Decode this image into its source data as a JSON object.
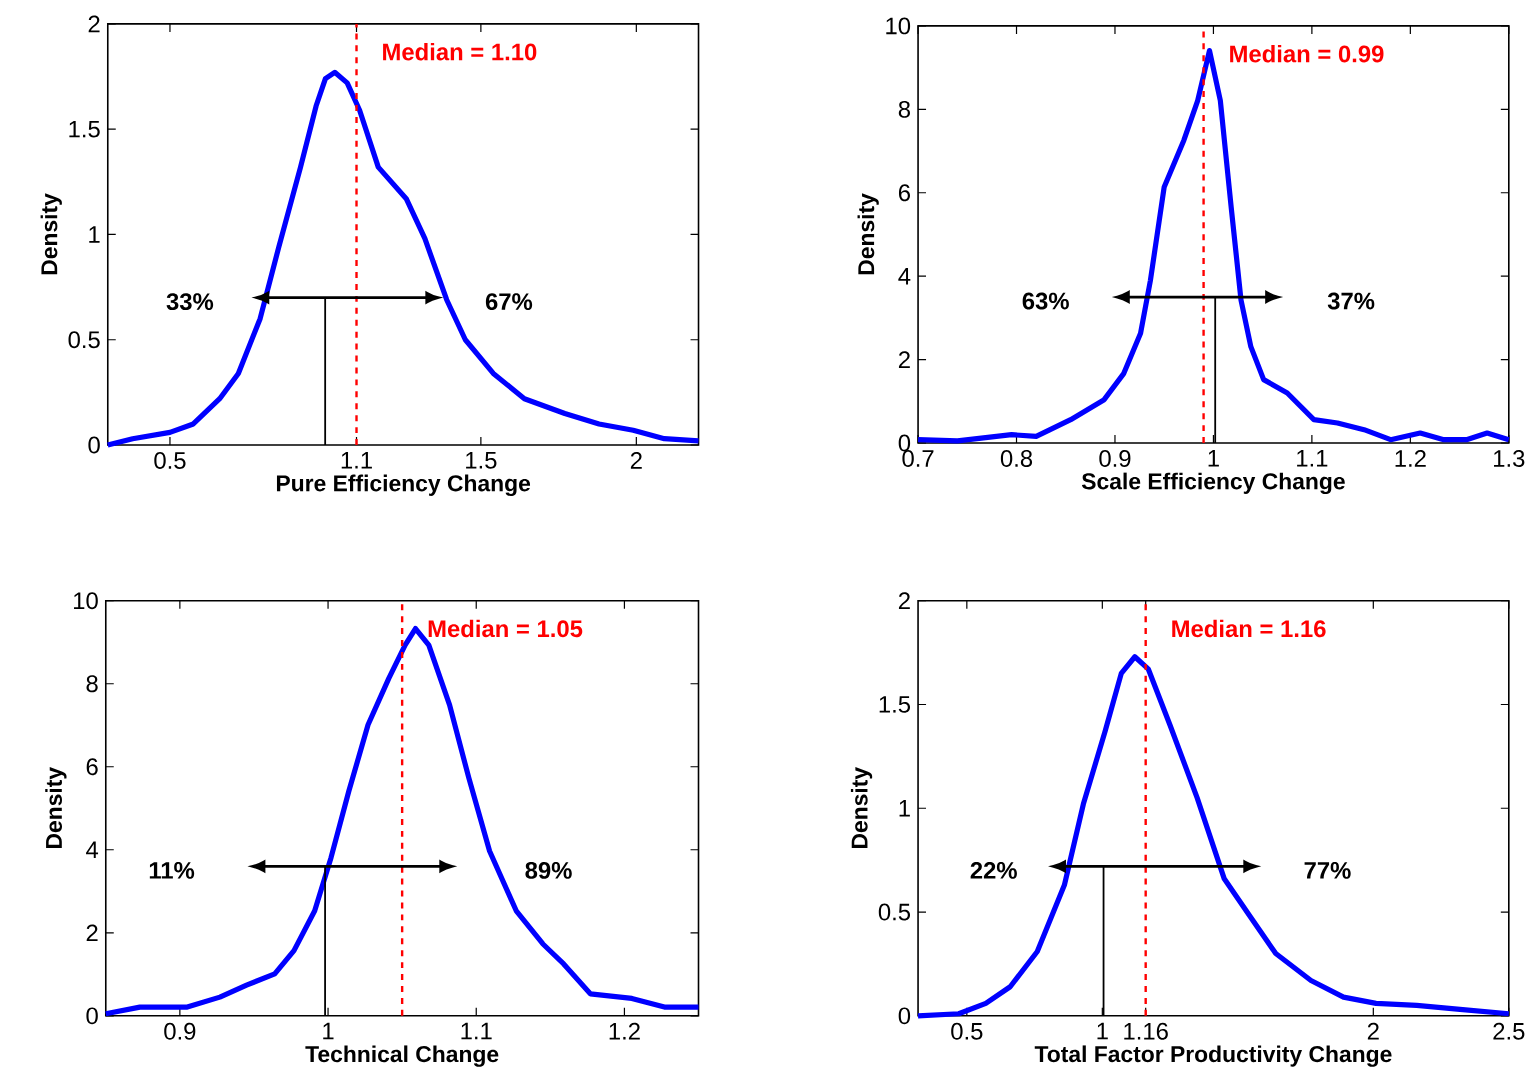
{
  "chart_data": [
    {
      "type": "line",
      "xlabel": "Pure Efficiency Change",
      "ylabel": "Density",
      "xlim": [
        0.3,
        2.2
      ],
      "ylim": [
        0,
        2
      ],
      "xticks": [
        0.5,
        1.1,
        1.5,
        2
      ],
      "yticks": [
        0,
        0.5,
        1,
        1.5,
        2
      ],
      "series": [
        {
          "color": "#0000ff",
          "x": [
            0.3,
            0.38,
            0.5,
            0.575,
            0.66,
            0.72,
            0.79,
            0.85,
            0.92,
            0.97,
            1.0,
            1.03,
            1.07,
            1.11,
            1.17,
            1.26,
            1.32,
            1.39,
            1.45,
            1.54,
            1.64,
            1.77,
            1.88,
            1.99,
            2.09,
            2.2
          ],
          "values": [
            0,
            0.03,
            0.06,
            0.1,
            0.22,
            0.34,
            0.6,
            0.94,
            1.32,
            1.61,
            1.74,
            1.77,
            1.72,
            1.59,
            1.32,
            1.17,
            0.98,
            0.69,
            0.5,
            0.34,
            0.22,
            0.15,
            0.1,
            0.07,
            0.03,
            0.02
          ]
        }
      ],
      "ref_lines": [
        {
          "axis": "x",
          "value": 1.1,
          "label": "Median = 1.10",
          "color": "#ff0000",
          "line_style": "dashed"
        }
      ],
      "annotations": [
        "33%",
        "67%"
      ]
    },
    {
      "type": "line",
      "xlabel": "Scale Efficiency Change",
      "ylabel": "Density",
      "xlim": [
        0.7,
        1.3
      ],
      "ylim": [
        0,
        10
      ],
      "xticks": [
        0.7,
        0.8,
        0.9,
        1,
        1.1,
        1.2,
        1.3
      ],
      "yticks": [
        0,
        2,
        4,
        6,
        8,
        10
      ],
      "series": [
        {
          "color": "#0000ff",
          "x": [
            0.7,
            0.74,
            0.795,
            0.82,
            0.855,
            0.889,
            0.909,
            0.926,
            0.936,
            0.95,
            0.97,
            0.984,
            0.996,
            1.007,
            1.018,
            1.028,
            1.038,
            1.051,
            1.075,
            1.102,
            1.126,
            1.153,
            1.18,
            1.21,
            1.234,
            1.257,
            1.278,
            1.3
          ],
          "values": [
            0.08,
            0.05,
            0.2,
            0.16,
            0.56,
            1.04,
            1.67,
            2.63,
            3.9,
            6.14,
            7.26,
            8.21,
            9.41,
            8.21,
            5.66,
            3.43,
            2.31,
            1.52,
            1.2,
            0.56,
            0.48,
            0.32,
            0.08,
            0.24,
            0.08,
            0.08,
            0.24,
            0.08
          ]
        }
      ],
      "ref_lines": [
        {
          "axis": "x",
          "value": 0.99,
          "label": "Median = 0.99",
          "color": "#ff0000",
          "line_style": "dashed"
        }
      ],
      "annotations": [
        "63%",
        "37%"
      ]
    },
    {
      "type": "line",
      "xlabel": "Technical Change",
      "ylabel": "Density",
      "xlim": [
        0.85,
        1.25
      ],
      "ylim": [
        0,
        10
      ],
      "xticks": [
        0.9,
        1,
        1.1,
        1.2
      ],
      "yticks": [
        0,
        2,
        4,
        6,
        8,
        10
      ],
      "series": [
        {
          "color": "#0000ff",
          "x": [
            0.85,
            0.873,
            0.905,
            0.927,
            0.945,
            0.964,
            0.977,
            0.991,
            1.002,
            1.014,
            1.027,
            1.041,
            1.052,
            1.059,
            1.068,
            1.082,
            1.095,
            1.109,
            1.127,
            1.145,
            1.159,
            1.177,
            1.205,
            1.227,
            1.25
          ],
          "values": [
            0.05,
            0.21,
            0.21,
            0.45,
            0.74,
            1.01,
            1.57,
            2.53,
            3.81,
            5.41,
            7.01,
            8.13,
            8.93,
            9.33,
            8.93,
            7.49,
            5.73,
            3.97,
            2.53,
            1.73,
            1.25,
            0.53,
            0.42,
            0.21,
            0.21
          ]
        }
      ],
      "ref_lines": [
        {
          "axis": "x",
          "value": 1.05,
          "label": "Median = 1.05",
          "color": "#ff0000",
          "line_style": "dashed"
        }
      ],
      "annotations": [
        "11%",
        "89%"
      ]
    },
    {
      "type": "line",
      "xlabel": "Total Factor Productivity Change",
      "ylabel": "Density",
      "xlim": [
        0.32,
        2.5
      ],
      "ylim": [
        0,
        2
      ],
      "xticks": [
        0.5,
        1,
        1.16,
        2,
        2.5
      ],
      "yticks": [
        0,
        0.5,
        1,
        1.5,
        2
      ],
      "series": [
        {
          "color": "#0000ff",
          "x": [
            0.32,
            0.47,
            0.57,
            0.66,
            0.76,
            0.86,
            0.93,
            1.01,
            1.07,
            1.12,
            1.17,
            1.25,
            1.35,
            1.45,
            1.55,
            1.64,
            1.77,
            1.89,
            2.01,
            2.16,
            2.33,
            2.5
          ],
          "values": [
            0,
            0.01,
            0.06,
            0.14,
            0.31,
            0.63,
            1.02,
            1.37,
            1.65,
            1.73,
            1.67,
            1.4,
            1.05,
            0.66,
            0.47,
            0.3,
            0.17,
            0.09,
            0.06,
            0.05,
            0.03,
            0.01
          ]
        }
      ],
      "ref_lines": [
        {
          "axis": "x",
          "value": 1.16,
          "label": "Median = 1.16",
          "color": "#ff0000",
          "line_style": "dashed"
        }
      ],
      "annotations": [
        "22%",
        "77%"
      ]
    }
  ]
}
